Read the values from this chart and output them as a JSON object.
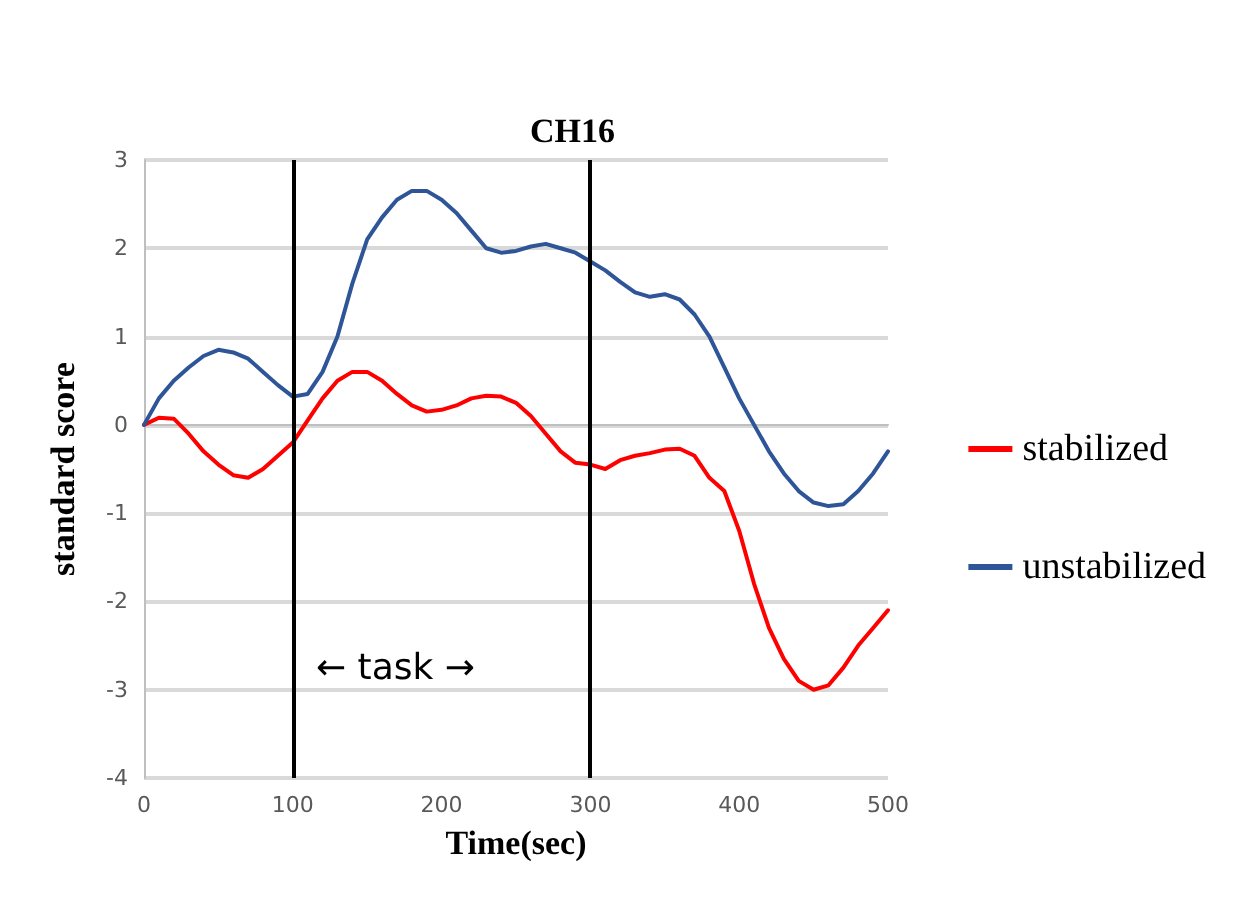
{
  "chart_data": {
    "type": "line",
    "title": "CH16",
    "xlabel": "Time(sec)",
    "ylabel": "standard score",
    "x": [
      0,
      10,
      20,
      30,
      40,
      50,
      60,
      70,
      80,
      90,
      100,
      110,
      120,
      130,
      140,
      150,
      160,
      170,
      180,
      190,
      200,
      210,
      220,
      230,
      240,
      250,
      260,
      270,
      280,
      290,
      300,
      310,
      320,
      330,
      340,
      350,
      360,
      370,
      380,
      390,
      400,
      410,
      420,
      430,
      440,
      450,
      460,
      470,
      480,
      490,
      500
    ],
    "series": [
      {
        "name": "stabilized",
        "color": "#ff0000",
        "values": [
          0,
          0.08,
          0.07,
          -0.1,
          -0.3,
          -0.45,
          -0.57,
          -0.6,
          -0.5,
          -0.35,
          -0.2,
          0.05,
          0.3,
          0.5,
          0.6,
          0.6,
          0.5,
          0.35,
          0.22,
          0.15,
          0.17,
          0.22,
          0.3,
          0.33,
          0.32,
          0.25,
          0.1,
          -0.1,
          -0.3,
          -0.43,
          -0.45,
          -0.5,
          -0.4,
          -0.35,
          -0.32,
          -0.28,
          -0.27,
          -0.35,
          -0.6,
          -0.75,
          -1.2,
          -1.8,
          -2.3,
          -2.65,
          -2.9,
          -3,
          -2.95,
          -2.75,
          -2.5,
          -2.3,
          -2.1
        ]
      },
      {
        "name": "unstabilized",
        "color": "#2e5597",
        "values": [
          0,
          0.3,
          0.5,
          0.65,
          0.78,
          0.85,
          0.82,
          0.75,
          0.6,
          0.45,
          0.32,
          0.35,
          0.6,
          1,
          1.6,
          2.1,
          2.35,
          2.55,
          2.65,
          2.65,
          2.55,
          2.4,
          2.2,
          2,
          1.95,
          1.97,
          2.02,
          2.05,
          2,
          1.95,
          1.85,
          1.75,
          1.62,
          1.5,
          1.45,
          1.48,
          1.42,
          1.25,
          1,
          0.65,
          0.3,
          0,
          -0.3,
          -0.55,
          -0.75,
          -0.88,
          -0.92,
          -0.9,
          -0.75,
          -0.55,
          -0.3
        ]
      }
    ],
    "xlim": [
      0,
      500
    ],
    "xticks": [
      0,
      100,
      200,
      300,
      400,
      500
    ],
    "ylim": [
      -4,
      3
    ],
    "yticks": [
      -4,
      -3,
      -2,
      -1,
      0,
      1,
      2,
      3
    ],
    "grid": "y",
    "legend": "right",
    "marker": "none",
    "line_style": "solid",
    "ref_lines": [
      {
        "axis": "x",
        "value": 100,
        "label": null,
        "color": "#000000"
      },
      {
        "axis": "x",
        "value": 300,
        "label": null,
        "color": "#000000"
      }
    ],
    "annotations": [
      "← task →"
    ]
  }
}
